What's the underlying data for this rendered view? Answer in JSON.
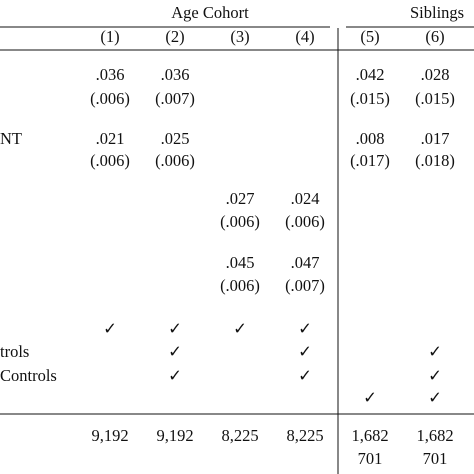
{
  "table": {
    "groups": [
      "Age Cohort",
      "Siblings"
    ],
    "columns": [
      "(1)",
      "(2)",
      "(3)",
      "(4)",
      "(5)",
      "(6)"
    ],
    "rows": [
      {
        "label": null,
        "cells": [
          ".036",
          ".036",
          null,
          null,
          ".042",
          ".028"
        ]
      },
      {
        "label": null,
        "cells": [
          "(.006)",
          "(.007)",
          null,
          null,
          "(.015)",
          "(.015)"
        ]
      },
      {
        "label": "NT",
        "cells": [
          ".021",
          ".025",
          null,
          null,
          ".008",
          ".017"
        ]
      },
      {
        "label": null,
        "cells": [
          "(.006)",
          "(.006)",
          null,
          null,
          "(.017)",
          "(.018)"
        ]
      },
      {
        "label": null,
        "cells": [
          null,
          null,
          ".027",
          ".024",
          null,
          null
        ]
      },
      {
        "label": null,
        "cells": [
          null,
          null,
          "(.006)",
          "(.006)",
          null,
          null
        ]
      },
      {
        "label": null,
        "cells": [
          null,
          null,
          ".045",
          ".047",
          null,
          null
        ]
      },
      {
        "label": null,
        "cells": [
          null,
          null,
          "(.006)",
          "(.007)",
          null,
          null
        ]
      },
      {
        "label": null,
        "cells": [
          "✓",
          "✓",
          "✓",
          "✓",
          null,
          null
        ]
      },
      {
        "label": "trols",
        "cells": [
          null,
          "✓",
          null,
          "✓",
          null,
          "✓"
        ]
      },
      {
        "label": "Controls",
        "cells": [
          null,
          "✓",
          null,
          "✓",
          null,
          "✓"
        ]
      },
      {
        "label": null,
        "cells": [
          null,
          null,
          null,
          null,
          "✓",
          "✓"
        ]
      },
      {
        "label": null,
        "cells": [
          "9,192",
          "9,192",
          "8,225",
          "8,225",
          "1,682",
          "1,682"
        ]
      },
      {
        "label": null,
        "cells": [
          null,
          null,
          null,
          null,
          "701",
          "701"
        ]
      }
    ]
  }
}
